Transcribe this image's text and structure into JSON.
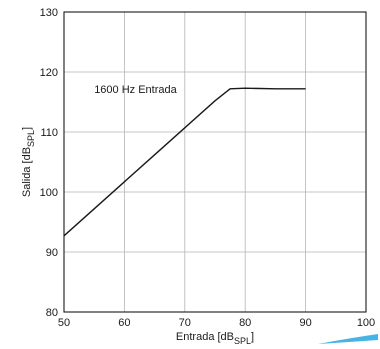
{
  "chart_data": {
    "type": "line",
    "title": "",
    "xlabel": {
      "text": "Entrada [dB",
      "sub": "SPL",
      "close": "]"
    },
    "ylabel": {
      "text": "Salida [dB",
      "sub": "SPL",
      "close": "]"
    },
    "xlim": [
      50,
      100
    ],
    "ylim": [
      80,
      130
    ],
    "xticks": [
      50,
      60,
      70,
      80,
      90,
      100
    ],
    "yticks": [
      80,
      90,
      100,
      110,
      120,
      130
    ],
    "grid": true,
    "series": [
      {
        "x": [
          50,
          55,
          60,
          65,
          70,
          75,
          77.5,
          80,
          85,
          90
        ],
        "y": [
          92.7,
          97.2,
          101.7,
          106.2,
          110.7,
          115.2,
          117.2,
          117.3,
          117.2,
          117.2
        ]
      }
    ],
    "annotations": [
      {
        "text": "1600 Hz Entrada",
        "x": 55,
        "y": 116.5
      }
    ],
    "colors": {
      "line": "#1a1a1a",
      "grid": "#b5b5b5",
      "accent": "#4ab3e6"
    }
  }
}
